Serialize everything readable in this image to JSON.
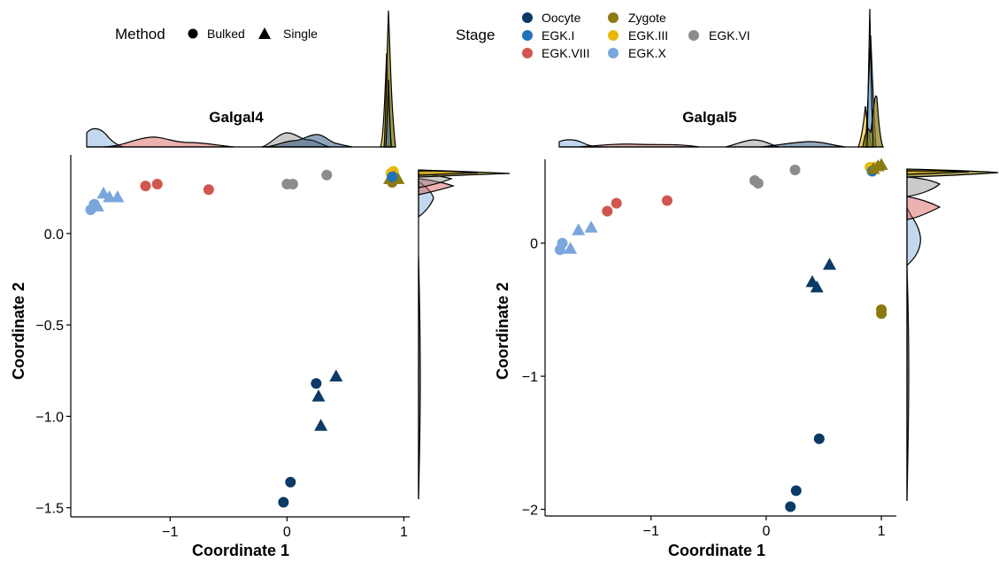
{
  "colors": {
    "Oocyte": "#0b3a66",
    "EGK.I": "#1f73b8",
    "EGK.VIII": "#d2554f",
    "EGK.X": "#7aa6dc",
    "Zygote": "#8a7a10",
    "EGK.III": "#e8b90c",
    "EGK.VI": "#8c8c8c"
  },
  "legend": {
    "method_title": "Method",
    "methods": [
      {
        "label": "Bulked",
        "shape": "circle"
      },
      {
        "label": "Single",
        "shape": "triangle"
      }
    ],
    "stage_title": "Stage",
    "stages": [
      "Oocyte",
      "Zygote",
      "EGK.I",
      "EGK.III",
      "EGK.VI",
      "EGK.VIII",
      "EGK.X"
    ]
  },
  "chart_data": [
    {
      "type": "scatter",
      "title": "Galgal4",
      "xlabel": "Coordinate 1",
      "ylabel": "Coordinate 2",
      "xlim": [
        -1.85,
        1.05
      ],
      "ylim": [
        -1.55,
        0.43
      ],
      "xticks": [
        -1,
        0,
        1
      ],
      "xtick_labels": [
        "−1",
        "0",
        "1"
      ],
      "yticks": [
        -1.5,
        -1.0,
        -0.5,
        0.0
      ],
      "ytick_labels": [
        "−1.5",
        "−1.0",
        "−0.5",
        "0.0"
      ],
      "marginal": "density",
      "points": [
        {
          "x": -0.03,
          "y": -1.47,
          "stage": "Oocyte",
          "method": "Bulked"
        },
        {
          "x": 0.03,
          "y": -1.36,
          "stage": "Oocyte",
          "method": "Bulked"
        },
        {
          "x": 0.25,
          "y": -0.82,
          "stage": "Oocyte",
          "method": "Bulked"
        },
        {
          "x": 0.42,
          "y": -0.78,
          "stage": "Oocyte",
          "method": "Single"
        },
        {
          "x": 0.27,
          "y": -0.89,
          "stage": "Oocyte",
          "method": "Single"
        },
        {
          "x": 0.29,
          "y": -1.05,
          "stage": "Oocyte",
          "method": "Single"
        },
        {
          "x": -1.68,
          "y": 0.13,
          "stage": "EGK.X",
          "method": "Bulked"
        },
        {
          "x": -1.65,
          "y": 0.16,
          "stage": "EGK.X",
          "method": "Bulked"
        },
        {
          "x": -1.62,
          "y": 0.15,
          "stage": "EGK.X",
          "method": "Single"
        },
        {
          "x": -1.57,
          "y": 0.22,
          "stage": "EGK.X",
          "method": "Single"
        },
        {
          "x": -1.52,
          "y": 0.2,
          "stage": "EGK.X",
          "method": "Single"
        },
        {
          "x": -1.45,
          "y": 0.2,
          "stage": "EGK.X",
          "method": "Single"
        },
        {
          "x": -1.21,
          "y": 0.26,
          "stage": "EGK.VIII",
          "method": "Bulked"
        },
        {
          "x": -1.11,
          "y": 0.27,
          "stage": "EGK.VIII",
          "method": "Bulked"
        },
        {
          "x": -0.67,
          "y": 0.24,
          "stage": "EGK.VIII",
          "method": "Bulked"
        },
        {
          "x": 0.0,
          "y": 0.27,
          "stage": "EGK.VI",
          "method": "Bulked"
        },
        {
          "x": 0.05,
          "y": 0.27,
          "stage": "EGK.VI",
          "method": "Bulked"
        },
        {
          "x": 0.34,
          "y": 0.32,
          "stage": "EGK.VI",
          "method": "Bulked"
        },
        {
          "x": 0.89,
          "y": 0.33,
          "stage": "EGK.III",
          "method": "Bulked"
        },
        {
          "x": 0.91,
          "y": 0.34,
          "stage": "EGK.III",
          "method": "Bulked"
        },
        {
          "x": 0.9,
          "y": 0.28,
          "stage": "Zygote",
          "method": "Bulked"
        },
        {
          "x": 0.88,
          "y": 0.3,
          "stage": "Zygote",
          "method": "Single"
        },
        {
          "x": 0.92,
          "y": 0.31,
          "stage": "Zygote",
          "method": "Single"
        },
        {
          "x": 0.95,
          "y": 0.3,
          "stage": "Zygote",
          "method": "Single"
        },
        {
          "x": 0.9,
          "y": 0.31,
          "stage": "EGK.I",
          "method": "Bulked"
        }
      ]
    },
    {
      "type": "scatter",
      "title": "Galgal5",
      "xlabel": "Coordinate 1",
      "ylabel": "Coordinate 2",
      "xlim": [
        -1.92,
        1.13
      ],
      "ylim": [
        -2.05,
        0.63
      ],
      "xticks": [
        -1,
        0,
        1
      ],
      "xtick_labels": [
        "−1",
        "0",
        "1"
      ],
      "yticks": [
        -2,
        -1,
        0
      ],
      "ytick_labels": [
        "−2",
        "−1",
        "0"
      ],
      "marginal": "density",
      "points": [
        {
          "x": 0.21,
          "y": -1.98,
          "stage": "Oocyte",
          "method": "Bulked"
        },
        {
          "x": 0.26,
          "y": -1.86,
          "stage": "Oocyte",
          "method": "Bulked"
        },
        {
          "x": 0.46,
          "y": -1.47,
          "stage": "Oocyte",
          "method": "Bulked"
        },
        {
          "x": 0.55,
          "y": -0.16,
          "stage": "Oocyte",
          "method": "Single"
        },
        {
          "x": 0.4,
          "y": -0.29,
          "stage": "Oocyte",
          "method": "Single"
        },
        {
          "x": 0.44,
          "y": -0.33,
          "stage": "Oocyte",
          "method": "Single"
        },
        {
          "x": -1.79,
          "y": -0.05,
          "stage": "EGK.X",
          "method": "Bulked"
        },
        {
          "x": -1.77,
          "y": 0.0,
          "stage": "EGK.X",
          "method": "Bulked"
        },
        {
          "x": -1.7,
          "y": -0.04,
          "stage": "EGK.X",
          "method": "Single"
        },
        {
          "x": -1.63,
          "y": 0.1,
          "stage": "EGK.X",
          "method": "Single"
        },
        {
          "x": -1.52,
          "y": 0.12,
          "stage": "EGK.X",
          "method": "Single"
        },
        {
          "x": -1.38,
          "y": 0.24,
          "stage": "EGK.VIII",
          "method": "Bulked"
        },
        {
          "x": -1.3,
          "y": 0.3,
          "stage": "EGK.VIII",
          "method": "Bulked"
        },
        {
          "x": -0.86,
          "y": 0.32,
          "stage": "EGK.VIII",
          "method": "Bulked"
        },
        {
          "x": -0.1,
          "y": 0.47,
          "stage": "EGK.VI",
          "method": "Bulked"
        },
        {
          "x": -0.07,
          "y": 0.45,
          "stage": "EGK.VI",
          "method": "Bulked"
        },
        {
          "x": 0.25,
          "y": 0.55,
          "stage": "EGK.VI",
          "method": "Bulked"
        },
        {
          "x": 0.9,
          "y": 0.57,
          "stage": "EGK.III",
          "method": "Bulked"
        },
        {
          "x": 0.94,
          "y": 0.57,
          "stage": "EGK.III",
          "method": "Bulked"
        },
        {
          "x": 0.92,
          "y": 0.54,
          "stage": "EGK.I",
          "method": "Bulked"
        },
        {
          "x": 0.93,
          "y": 0.56,
          "stage": "Zygote",
          "method": "Single"
        },
        {
          "x": 0.97,
          "y": 0.58,
          "stage": "Zygote",
          "method": "Single"
        },
        {
          "x": 1.0,
          "y": 0.59,
          "stage": "Zygote",
          "method": "Single"
        },
        {
          "x": 1.0,
          "y": -0.5,
          "stage": "Zygote",
          "method": "Bulked"
        },
        {
          "x": 1.0,
          "y": -0.53,
          "stage": "Zygote",
          "method": "Bulked"
        }
      ]
    }
  ]
}
